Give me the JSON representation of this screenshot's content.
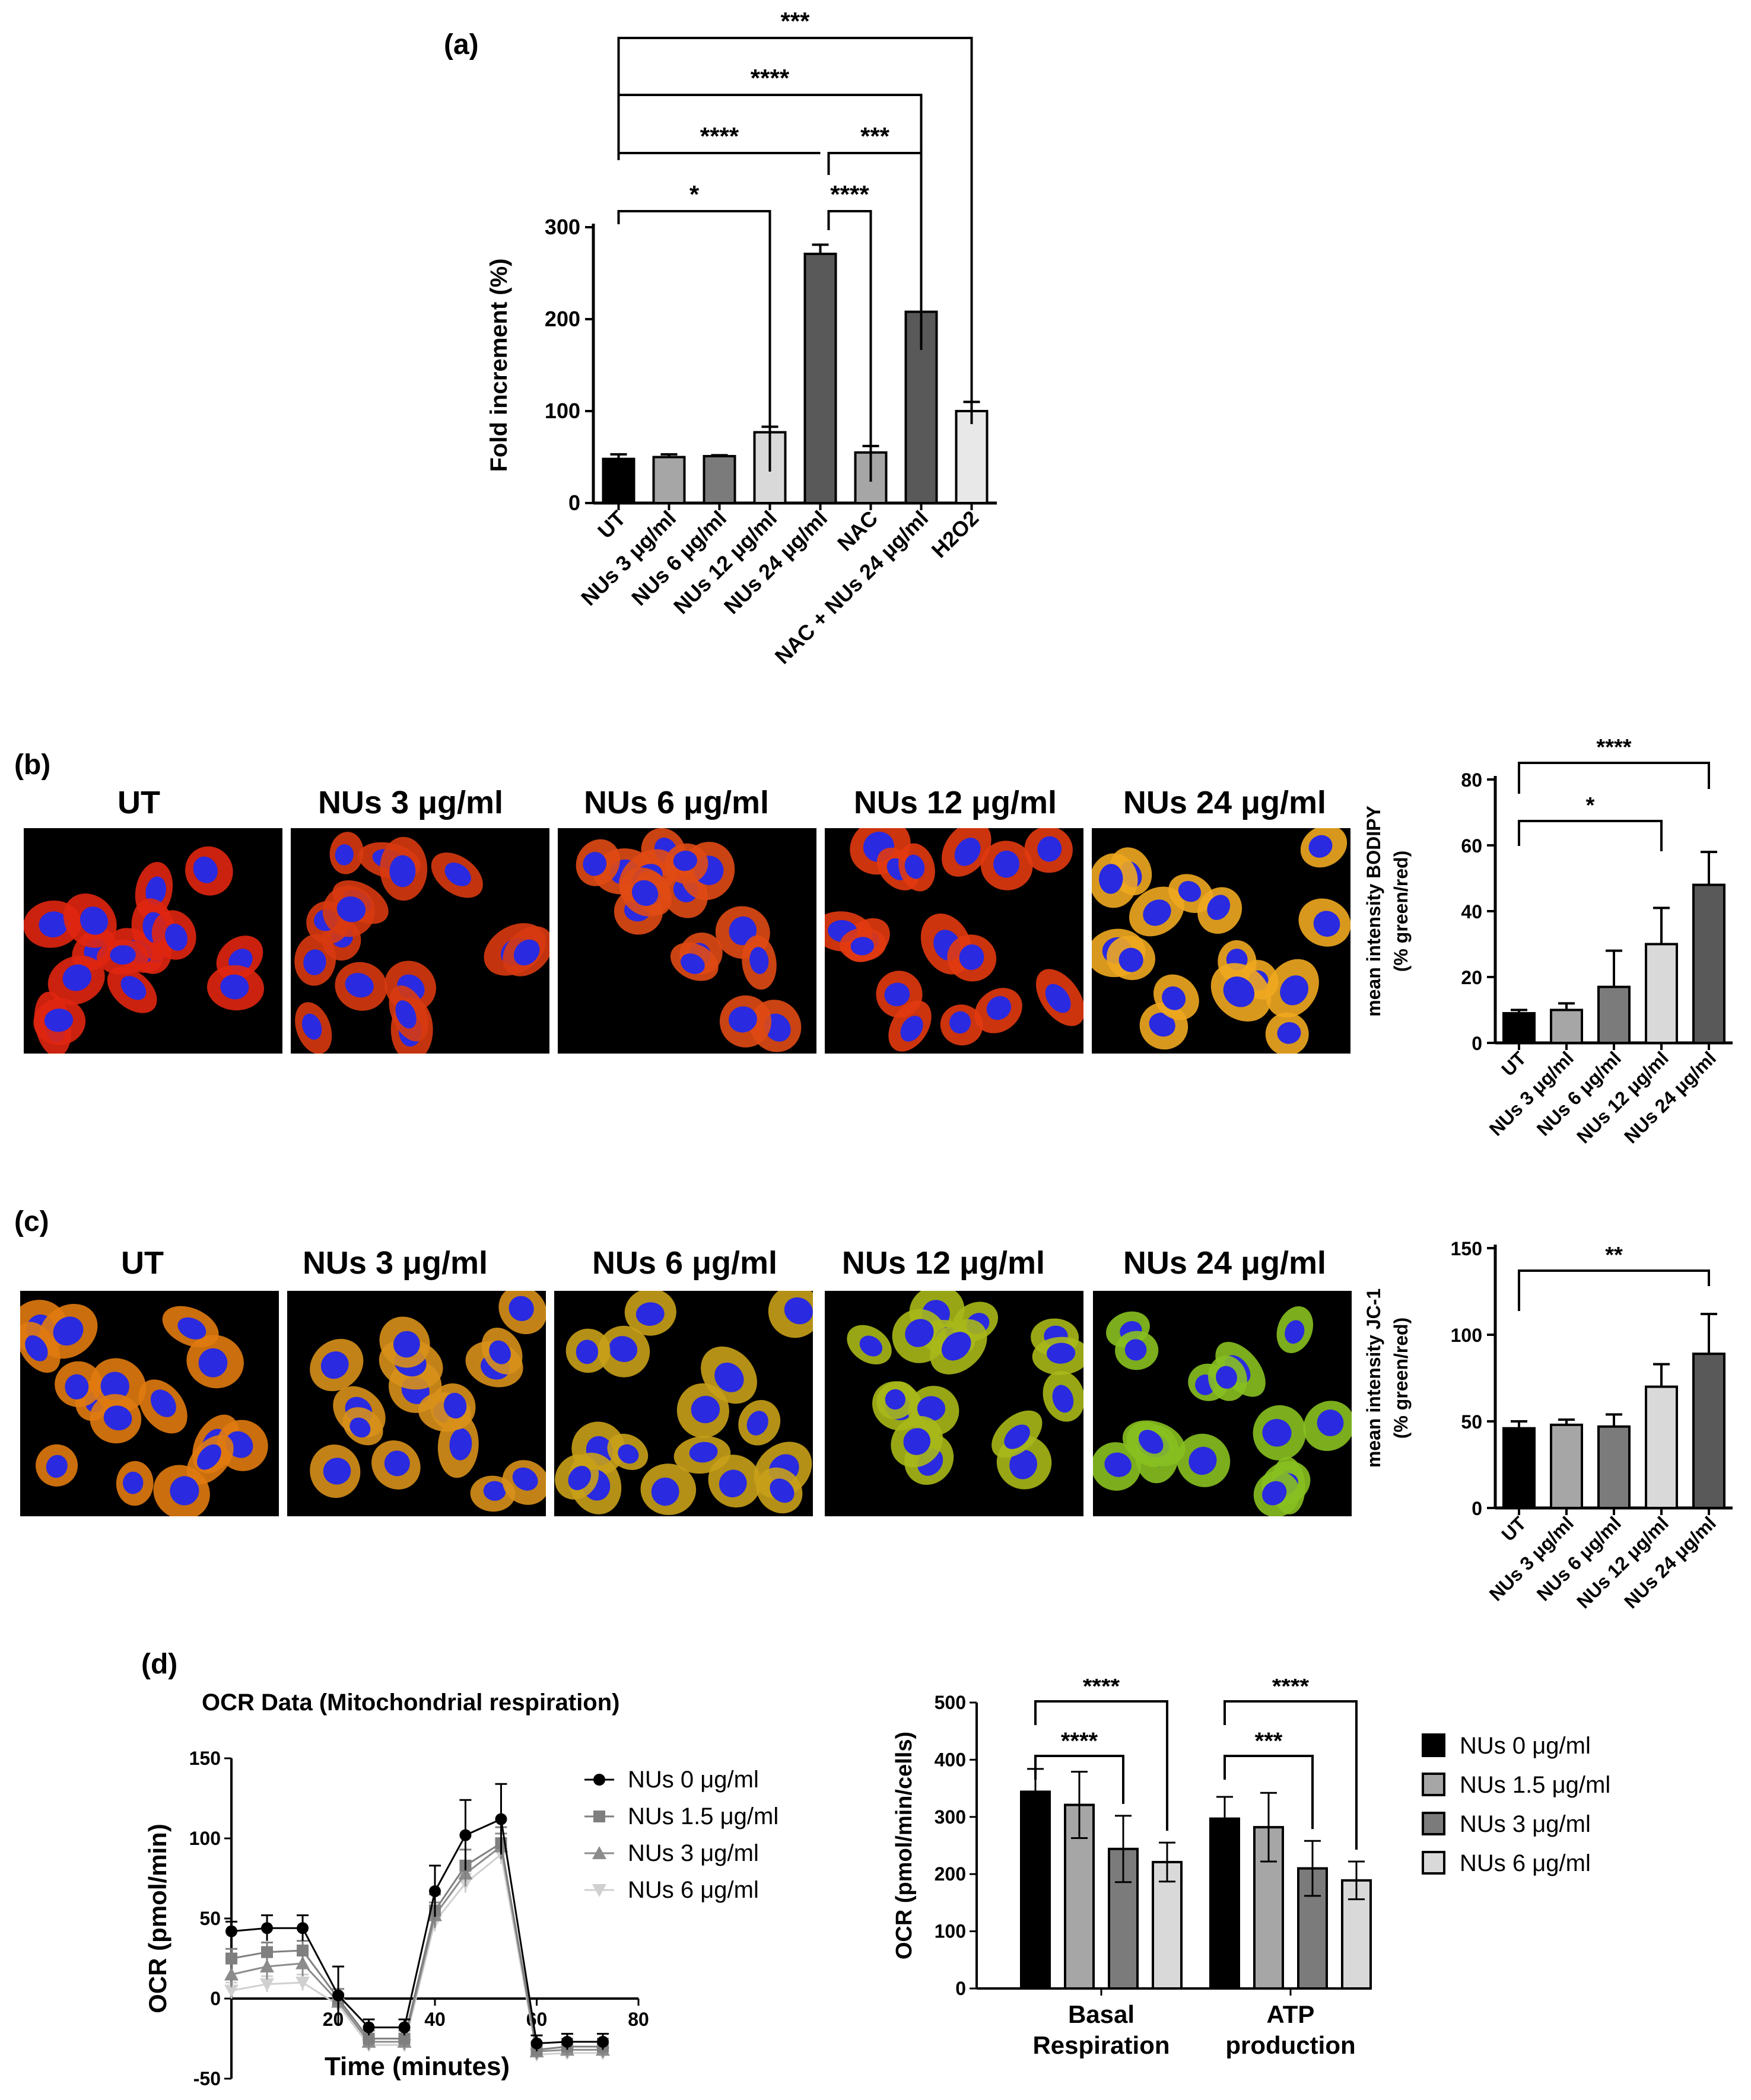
{
  "panels": {
    "a": "(a)",
    "b": "(b)",
    "c": "(c)",
    "d": "(d)"
  },
  "chart_data": [
    {
      "id": "a",
      "type": "bar",
      "categories": [
        "UT",
        "NUs 3 μg/ml",
        "NUs 6 μg/ml",
        "NUs 12 μg/ml",
        "NUs 24 μg/ml",
        "NAC",
        "NAC + NUs 24 μg/ml",
        "H2O2"
      ],
      "values": [
        48,
        50,
        51,
        77,
        271,
        55,
        208,
        100
      ],
      "errors": [
        5,
        3,
        1,
        6,
        10,
        7,
        0,
        10
      ],
      "colors": [
        "#000000",
        "#a6a6a6",
        "#7b7b7b",
        "#d9d9d9",
        "#595959",
        "#a6a6a6",
        "#595959",
        "#e8e8e8"
      ],
      "ylabel": "Fold increment (%)",
      "yticks": [
        0,
        100,
        200,
        300
      ],
      "ylim": [
        0,
        300
      ],
      "significance": [
        {
          "from": 0,
          "to": 7,
          "label": "***"
        },
        {
          "from": 0,
          "to": 6,
          "label": "****"
        },
        {
          "from": 0,
          "to": 4,
          "label": "****"
        },
        {
          "from": 4,
          "to": 6,
          "label": "***"
        },
        {
          "from": 0,
          "to": 3,
          "label": "*"
        },
        {
          "from": 4,
          "to": 5,
          "label": "****"
        }
      ]
    },
    {
      "id": "b",
      "type": "bar",
      "categories": [
        "UT",
        "NUs 3 μg/ml",
        "NUs 6 μg/ml",
        "NUs 12 μg/ml",
        "NUs 24 μg/ml"
      ],
      "values": [
        9,
        10,
        17,
        30,
        48
      ],
      "errors": [
        1,
        2,
        11,
        11,
        10
      ],
      "colors": [
        "#000000",
        "#a6a6a6",
        "#7b7b7b",
        "#d9d9d9",
        "#595959"
      ],
      "ylabel": "mean intensity BODIPY",
      "ylabel2": "(% green/red)",
      "yticks": [
        0,
        20,
        40,
        60,
        80
      ],
      "ylim": [
        0,
        80
      ],
      "significance": [
        {
          "from": 0,
          "to": 4,
          "label": "****"
        },
        {
          "from": 0,
          "to": 3,
          "label": "*"
        }
      ]
    },
    {
      "id": "c",
      "type": "bar",
      "categories": [
        "UT",
        "NUs 3 μg/ml",
        "NUs 6 μg/ml",
        "NUs 12 μg/ml",
        "NUs 24 μg/ml"
      ],
      "values": [
        46,
        48,
        47,
        70,
        89
      ],
      "errors": [
        4,
        3,
        7,
        13,
        23
      ],
      "colors": [
        "#000000",
        "#a6a6a6",
        "#7b7b7b",
        "#d9d9d9",
        "#595959"
      ],
      "ylabel": "mean intensity JC-1",
      "ylabel2": "(% green/red)",
      "yticks": [
        0,
        50,
        100,
        150
      ],
      "ylim": [
        0,
        150
      ],
      "significance": [
        {
          "from": 0,
          "to": 4,
          "label": "**"
        }
      ]
    },
    {
      "id": "d-line",
      "type": "line",
      "title": "OCR Data (Mitochondrial respiration)",
      "xlabel": "Time (minutes)",
      "ylabel": "OCR (pmol/min)",
      "xticks": [
        20,
        40,
        60,
        80
      ],
      "yticks": [
        -50,
        0,
        50,
        100,
        150
      ],
      "xlim": [
        0,
        80
      ],
      "ylim": [
        -50,
        150
      ],
      "x": [
        0,
        7,
        14,
        21,
        27,
        34,
        40,
        46,
        53,
        60,
        66,
        73
      ],
      "series": [
        {
          "name": "NUs 0 μg/ml",
          "marker": "circle",
          "color": "#000000",
          "values": [
            42,
            44,
            44,
            2,
            -18,
            -18,
            67,
            102,
            112,
            -28,
            -27,
            -27
          ],
          "errors": [
            6,
            8,
            8,
            18,
            5,
            5,
            16,
            22,
            22,
            5,
            5,
            5
          ]
        },
        {
          "name": "NUs 1.5 μg/ml",
          "marker": "square",
          "color": "#7f7f7f",
          "values": [
            25,
            29,
            30,
            0,
            -25,
            -25,
            55,
            83,
            97,
            -32,
            -30,
            -30
          ],
          "errors": [
            6,
            6,
            6,
            6,
            5,
            5,
            10,
            10,
            10,
            5,
            5,
            5
          ]
        },
        {
          "name": "NUs 3 μg/ml",
          "marker": "triangle",
          "color": "#8c8c8c",
          "values": [
            15,
            20,
            22,
            -2,
            -27,
            -27,
            52,
            78,
            95,
            -33,
            -32,
            -32
          ],
          "errors": [
            8,
            8,
            8,
            5,
            5,
            5,
            8,
            8,
            8,
            5,
            5,
            5
          ]
        },
        {
          "name": "NUs 6 μg/ml",
          "marker": "triangle-down",
          "color": "#d0d0d0",
          "values": [
            5,
            9,
            10,
            -4,
            -29,
            -29,
            48,
            72,
            90,
            -35,
            -34,
            -34
          ],
          "errors": [
            5,
            5,
            5,
            4,
            4,
            4,
            6,
            6,
            6,
            4,
            4,
            4
          ]
        }
      ]
    },
    {
      "id": "d-bar",
      "type": "bar",
      "ylabel": "OCR (pmol/min/cells)",
      "categories": [
        "Basal Respiration",
        "ATP production"
      ],
      "category_lines": [
        [
          "Basal",
          "Respiration"
        ],
        [
          "ATP",
          "production"
        ]
      ],
      "yticks": [
        0,
        100,
        200,
        300,
        400,
        500
      ],
      "ylim": [
        0,
        500
      ],
      "series": [
        {
          "name": "NUs 0 μg/ml",
          "color": "#000000",
          "values": [
            344,
            297
          ],
          "errors": [
            40,
            38
          ]
        },
        {
          "name": "NUs 1.5 μg/ml",
          "color": "#a6a6a6",
          "values": [
            321,
            282
          ],
          "errors": [
            58,
            60
          ]
        },
        {
          "name": "NUs 3 μg/ml",
          "color": "#7b7b7b",
          "values": [
            244,
            210
          ],
          "errors": [
            58,
            48
          ]
        },
        {
          "name": "NUs 6 μg/ml",
          "color": "#d9d9d9",
          "values": [
            221,
            189
          ],
          "errors": [
            34,
            33
          ]
        }
      ],
      "significance": [
        {
          "group": 0,
          "from": 0,
          "to": 3,
          "label": "****"
        },
        {
          "group": 0,
          "from": 0,
          "to": 2,
          "label": "****"
        },
        {
          "group": 1,
          "from": 0,
          "to": 3,
          "label": "****"
        },
        {
          "group": 1,
          "from": 0,
          "to": 2,
          "label": "***"
        }
      ]
    }
  ],
  "micrographs": {
    "b": {
      "titles": [
        "UT",
        "NUs 3 μg/ml",
        "NUs 6 μg/ml",
        "NUs 12 μg/ml",
        "NUs 24 μg/ml"
      ],
      "cytoplasm_colors": [
        "#e0260f",
        "#d83a10",
        "#e04a14",
        "#e23a10",
        "#f0a820"
      ],
      "nucleus_color": "#2a2ae0"
    },
    "c": {
      "titles": [
        "UT",
        "NUs 3 μg/ml",
        "NUs 6 μg/ml",
        "NUs 12 μg/ml",
        "NUs 24 μg/ml"
      ],
      "cytoplasm_colors": [
        "#e07a10",
        "#d8901a",
        "#c8a018",
        "#a8b818",
        "#88c020"
      ],
      "nucleus_color": "#2a2ae0"
    }
  }
}
